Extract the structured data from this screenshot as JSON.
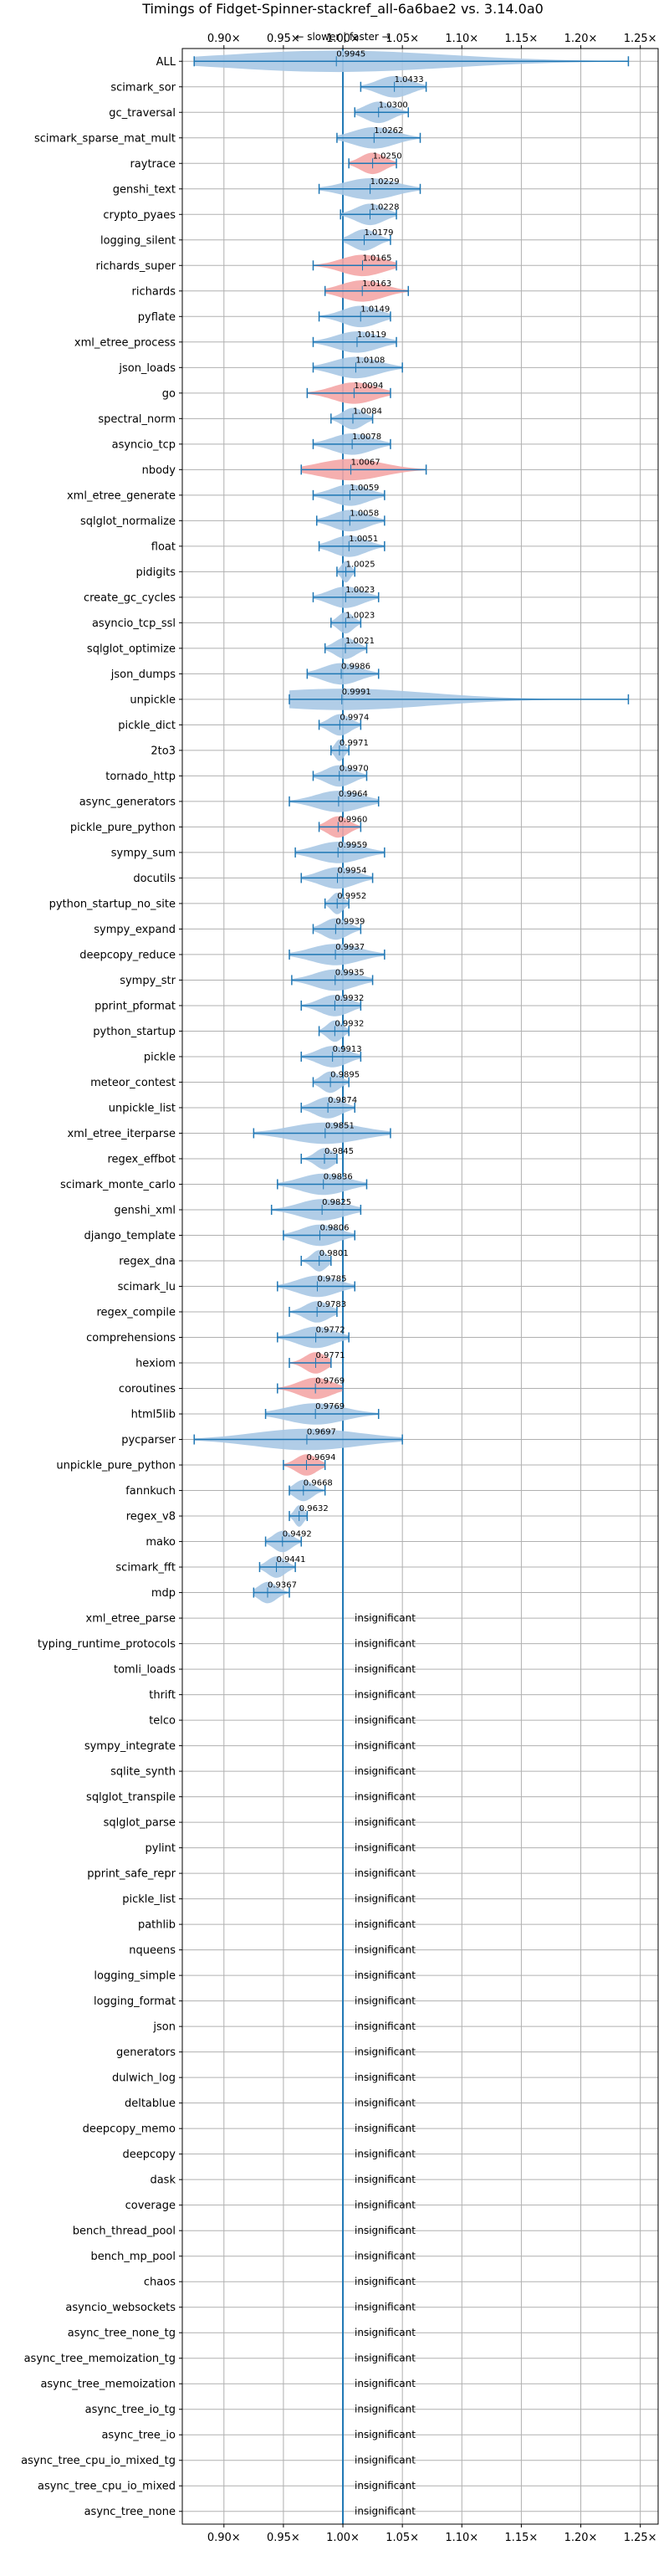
{
  "chart_data": {
    "type": "violin",
    "title": "Timings of Fidget-Spinner-stackref_all-6a6bae2 vs. 3.14.0a0",
    "subtitle": "← slower | faster →",
    "x_ticks": [
      "0.90×",
      "0.95×",
      "1.00×",
      "1.05×",
      "1.10×",
      "1.15×",
      "1.20×",
      "1.25×"
    ],
    "x_tick_values": [
      0.9,
      0.95,
      1.0,
      1.05,
      1.1,
      1.15,
      1.2,
      1.25
    ],
    "xlim": [
      0.865,
      1.265
    ],
    "reference_line": 1.0,
    "grid": true,
    "colors": {
      "faster": "#f4a6a6",
      "neutral": "#a8c8e4",
      "line": "#1f77b4",
      "grid": "#b0b0b0"
    },
    "insignificant_label": "insignificant",
    "benchmarks": [
      {
        "name": "ALL",
        "value": 0.9945,
        "min": 0.875,
        "max": 1.24,
        "color": "blue"
      },
      {
        "name": "scimark_sor",
        "value": 1.0433,
        "min": 1.015,
        "max": 1.07,
        "color": "blue"
      },
      {
        "name": "gc_traversal",
        "value": 1.03,
        "min": 1.01,
        "max": 1.055,
        "color": "blue"
      },
      {
        "name": "scimark_sparse_mat_mult",
        "value": 1.0262,
        "min": 0.995,
        "max": 1.065,
        "color": "blue"
      },
      {
        "name": "raytrace",
        "value": 1.025,
        "min": 1.005,
        "max": 1.045,
        "color": "red"
      },
      {
        "name": "genshi_text",
        "value": 1.0229,
        "min": 0.98,
        "max": 1.065,
        "color": "blue"
      },
      {
        "name": "crypto_pyaes",
        "value": 1.0228,
        "min": 0.998,
        "max": 1.045,
        "color": "blue"
      },
      {
        "name": "logging_silent",
        "value": 1.0179,
        "min": 1.0,
        "max": 1.04,
        "color": "blue"
      },
      {
        "name": "richards_super",
        "value": 1.0165,
        "min": 0.975,
        "max": 1.045,
        "color": "red"
      },
      {
        "name": "richards",
        "value": 1.0163,
        "min": 0.985,
        "max": 1.055,
        "color": "red"
      },
      {
        "name": "pyflate",
        "value": 1.0149,
        "min": 0.98,
        "max": 1.04,
        "color": "blue"
      },
      {
        "name": "xml_etree_process",
        "value": 1.0119,
        "min": 0.975,
        "max": 1.045,
        "color": "blue"
      },
      {
        "name": "json_loads",
        "value": 1.0108,
        "min": 0.975,
        "max": 1.05,
        "color": "blue"
      },
      {
        "name": "go",
        "value": 1.0094,
        "min": 0.97,
        "max": 1.04,
        "color": "red"
      },
      {
        "name": "spectral_norm",
        "value": 1.0084,
        "min": 0.99,
        "max": 1.025,
        "color": "blue"
      },
      {
        "name": "asyncio_tcp",
        "value": 1.0078,
        "min": 0.975,
        "max": 1.04,
        "color": "blue"
      },
      {
        "name": "nbody",
        "value": 1.0067,
        "min": 0.965,
        "max": 1.07,
        "color": "red"
      },
      {
        "name": "xml_etree_generate",
        "value": 1.0059,
        "min": 0.975,
        "max": 1.035,
        "color": "blue"
      },
      {
        "name": "sqlglot_normalize",
        "value": 1.0058,
        "min": 0.978,
        "max": 1.035,
        "color": "blue"
      },
      {
        "name": "float",
        "value": 1.0051,
        "min": 0.98,
        "max": 1.035,
        "color": "blue"
      },
      {
        "name": "pidigits",
        "value": 1.0025,
        "min": 0.995,
        "max": 1.01,
        "color": "blue"
      },
      {
        "name": "create_gc_cycles",
        "value": 1.0023,
        "min": 0.975,
        "max": 1.03,
        "color": "blue"
      },
      {
        "name": "asyncio_tcp_ssl",
        "value": 1.0023,
        "min": 0.99,
        "max": 1.015,
        "color": "blue"
      },
      {
        "name": "sqlglot_optimize",
        "value": 1.0021,
        "min": 0.985,
        "max": 1.02,
        "color": "blue"
      },
      {
        "name": "json_dumps",
        "value": 0.9986,
        "min": 0.97,
        "max": 1.03,
        "color": "blue"
      },
      {
        "name": "unpickle",
        "value": 0.9991,
        "min": 0.955,
        "max": 1.24,
        "color": "blue"
      },
      {
        "name": "pickle_dict",
        "value": 0.9974,
        "min": 0.98,
        "max": 1.015,
        "color": "blue"
      },
      {
        "name": "2to3",
        "value": 0.9971,
        "min": 0.99,
        "max": 1.005,
        "color": "blue"
      },
      {
        "name": "tornado_http",
        "value": 0.997,
        "min": 0.975,
        "max": 1.02,
        "color": "blue"
      },
      {
        "name": "async_generators",
        "value": 0.9964,
        "min": 0.955,
        "max": 1.03,
        "color": "blue"
      },
      {
        "name": "pickle_pure_python",
        "value": 0.996,
        "min": 0.98,
        "max": 1.015,
        "color": "red"
      },
      {
        "name": "sympy_sum",
        "value": 0.9959,
        "min": 0.96,
        "max": 1.035,
        "color": "blue"
      },
      {
        "name": "docutils",
        "value": 0.9954,
        "min": 0.965,
        "max": 1.025,
        "color": "blue"
      },
      {
        "name": "python_startup_no_site",
        "value": 0.9952,
        "min": 0.985,
        "max": 1.005,
        "color": "blue"
      },
      {
        "name": "sympy_expand",
        "value": 0.9939,
        "min": 0.975,
        "max": 1.015,
        "color": "blue"
      },
      {
        "name": "deepcopy_reduce",
        "value": 0.9937,
        "min": 0.955,
        "max": 1.035,
        "color": "blue"
      },
      {
        "name": "sympy_str",
        "value": 0.9935,
        "min": 0.957,
        "max": 1.025,
        "color": "blue"
      },
      {
        "name": "pprint_pformat",
        "value": 0.9932,
        "min": 0.965,
        "max": 1.015,
        "color": "blue"
      },
      {
        "name": "python_startup",
        "value": 0.9932,
        "min": 0.98,
        "max": 1.005,
        "color": "blue"
      },
      {
        "name": "pickle",
        "value": 0.9913,
        "min": 0.965,
        "max": 1.015,
        "color": "blue"
      },
      {
        "name": "meteor_contest",
        "value": 0.9895,
        "min": 0.975,
        "max": 1.005,
        "color": "blue"
      },
      {
        "name": "unpickle_list",
        "value": 0.9874,
        "min": 0.965,
        "max": 1.01,
        "color": "blue"
      },
      {
        "name": "xml_etree_iterparse",
        "value": 0.9851,
        "min": 0.925,
        "max": 1.04,
        "color": "blue"
      },
      {
        "name": "regex_effbot",
        "value": 0.9845,
        "min": 0.965,
        "max": 0.995,
        "color": "blue"
      },
      {
        "name": "scimark_monte_carlo",
        "value": 0.9836,
        "min": 0.945,
        "max": 1.02,
        "color": "blue"
      },
      {
        "name": "genshi_xml",
        "value": 0.9825,
        "min": 0.94,
        "max": 1.015,
        "color": "blue"
      },
      {
        "name": "django_template",
        "value": 0.9806,
        "min": 0.95,
        "max": 1.01,
        "color": "blue"
      },
      {
        "name": "regex_dna",
        "value": 0.9801,
        "min": 0.965,
        "max": 0.99,
        "color": "blue"
      },
      {
        "name": "scimark_lu",
        "value": 0.9785,
        "min": 0.945,
        "max": 1.01,
        "color": "blue"
      },
      {
        "name": "regex_compile",
        "value": 0.9783,
        "min": 0.955,
        "max": 0.995,
        "color": "blue"
      },
      {
        "name": "comprehensions",
        "value": 0.9772,
        "min": 0.945,
        "max": 1.005,
        "color": "blue"
      },
      {
        "name": "hexiom",
        "value": 0.9771,
        "min": 0.955,
        "max": 0.99,
        "color": "red"
      },
      {
        "name": "coroutines",
        "value": 0.9769,
        "min": 0.945,
        "max": 1.0,
        "color": "red"
      },
      {
        "name": "html5lib",
        "value": 0.9769,
        "min": 0.935,
        "max": 1.03,
        "color": "blue"
      },
      {
        "name": "pycparser",
        "value": 0.9697,
        "min": 0.875,
        "max": 1.05,
        "color": "blue"
      },
      {
        "name": "unpickle_pure_python",
        "value": 0.9694,
        "min": 0.95,
        "max": 0.985,
        "color": "red"
      },
      {
        "name": "fannkuch",
        "value": 0.9668,
        "min": 0.955,
        "max": 0.985,
        "color": "blue"
      },
      {
        "name": "regex_v8",
        "value": 0.9632,
        "min": 0.955,
        "max": 0.97,
        "color": "blue"
      },
      {
        "name": "mako",
        "value": 0.9492,
        "min": 0.935,
        "max": 0.965,
        "color": "blue"
      },
      {
        "name": "scimark_fft",
        "value": 0.9441,
        "min": 0.93,
        "max": 0.96,
        "color": "blue"
      },
      {
        "name": "mdp",
        "value": 0.9367,
        "min": 0.925,
        "max": 0.955,
        "color": "blue"
      },
      {
        "name": "xml_etree_parse",
        "insignificant": true
      },
      {
        "name": "typing_runtime_protocols",
        "insignificant": true
      },
      {
        "name": "tomli_loads",
        "insignificant": true
      },
      {
        "name": "thrift",
        "insignificant": true
      },
      {
        "name": "telco",
        "insignificant": true
      },
      {
        "name": "sympy_integrate",
        "insignificant": true
      },
      {
        "name": "sqlite_synth",
        "insignificant": true
      },
      {
        "name": "sqlglot_transpile",
        "insignificant": true
      },
      {
        "name": "sqlglot_parse",
        "insignificant": true
      },
      {
        "name": "pylint",
        "insignificant": true
      },
      {
        "name": "pprint_safe_repr",
        "insignificant": true
      },
      {
        "name": "pickle_list",
        "insignificant": true
      },
      {
        "name": "pathlib",
        "insignificant": true
      },
      {
        "name": "nqueens",
        "insignificant": true
      },
      {
        "name": "logging_simple",
        "insignificant": true
      },
      {
        "name": "logging_format",
        "insignificant": true
      },
      {
        "name": "json",
        "insignificant": true
      },
      {
        "name": "generators",
        "insignificant": true
      },
      {
        "name": "dulwich_log",
        "insignificant": true
      },
      {
        "name": "deltablue",
        "insignificant": true
      },
      {
        "name": "deepcopy_memo",
        "insignificant": true
      },
      {
        "name": "deepcopy",
        "insignificant": true
      },
      {
        "name": "dask",
        "insignificant": true
      },
      {
        "name": "coverage",
        "insignificant": true
      },
      {
        "name": "bench_thread_pool",
        "insignificant": true
      },
      {
        "name": "bench_mp_pool",
        "insignificant": true
      },
      {
        "name": "chaos",
        "insignificant": true
      },
      {
        "name": "asyncio_websockets",
        "insignificant": true
      },
      {
        "name": "async_tree_none_tg",
        "insignificant": true
      },
      {
        "name": "async_tree_memoization_tg",
        "insignificant": true
      },
      {
        "name": "async_tree_memoization",
        "insignificant": true
      },
      {
        "name": "async_tree_io_tg",
        "insignificant": true
      },
      {
        "name": "async_tree_io",
        "insignificant": true
      },
      {
        "name": "async_tree_cpu_io_mixed_tg",
        "insignificant": true
      },
      {
        "name": "async_tree_cpu_io_mixed",
        "insignificant": true
      },
      {
        "name": "async_tree_none",
        "insignificant": true
      }
    ]
  }
}
